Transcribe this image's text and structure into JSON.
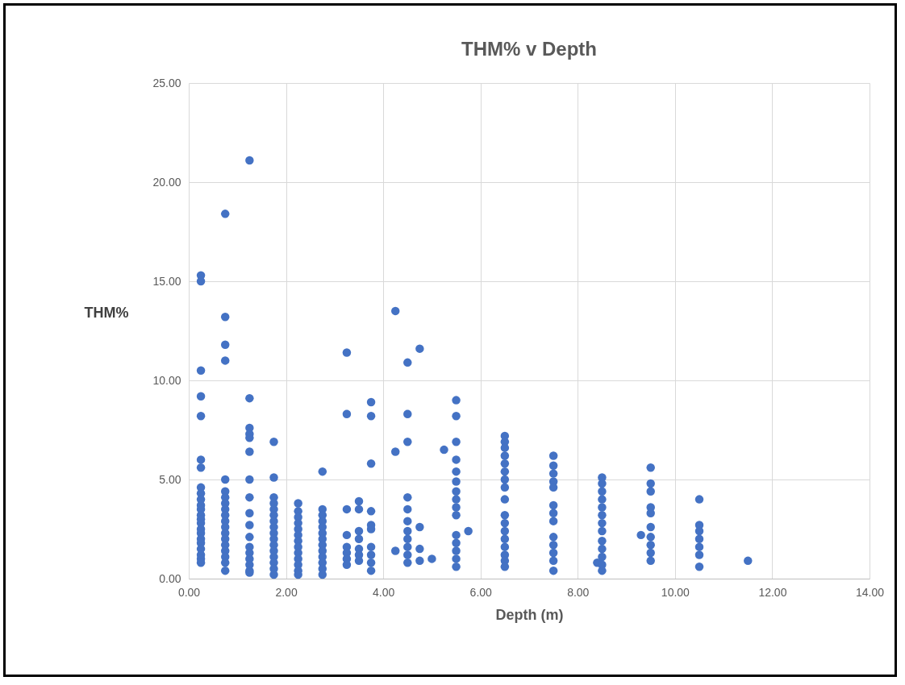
{
  "chart_data": {
    "type": "scatter",
    "title": "THM% v Depth",
    "xlabel": "Depth (m)",
    "ylabel": "THM%",
    "x": [
      0.25,
      0.25,
      0.25,
      0.25,
      0.25,
      0.25,
      0.25,
      0.25,
      0.25,
      0.25,
      0.25,
      0.25,
      0.25,
      0.25,
      0.25,
      0.25,
      0.25,
      0.25,
      0.25,
      0.25,
      0.25,
      0.25,
      0.25,
      0.75,
      0.75,
      0.75,
      0.75,
      0.75,
      0.75,
      0.75,
      0.75,
      0.75,
      0.75,
      0.75,
      0.75,
      0.75,
      0.75,
      0.75,
      0.75,
      0.75,
      0.75,
      0.75,
      1.25,
      1.25,
      1.25,
      1.25,
      1.25,
      1.25,
      1.25,
      1.25,
      1.25,
      1.25,
      1.25,
      1.25,
      1.25,
      1.25,
      1.25,
      1.25,
      1.25,
      1.75,
      1.75,
      1.75,
      1.75,
      1.75,
      1.75,
      1.75,
      1.75,
      1.75,
      1.75,
      1.75,
      1.75,
      1.75,
      1.75,
      1.75,
      1.75,
      2.25,
      2.25,
      2.25,
      2.25,
      2.25,
      2.25,
      2.25,
      2.25,
      2.25,
      2.25,
      2.25,
      2.25,
      2.25,
      2.75,
      2.75,
      2.75,
      2.75,
      2.75,
      2.75,
      2.75,
      2.75,
      2.75,
      2.75,
      2.75,
      2.75,
      2.75,
      3.25,
      3.25,
      3.25,
      3.25,
      3.25,
      3.25,
      3.25,
      3.25,
      3.5,
      3.5,
      3.5,
      3.5,
      3.5,
      3.5,
      3.5,
      3.75,
      3.75,
      3.75,
      3.75,
      3.75,
      3.75,
      3.75,
      3.75,
      3.75,
      3.75,
      4.25,
      4.25,
      4.25,
      4.5,
      4.5,
      4.5,
      4.5,
      4.5,
      4.5,
      4.5,
      4.5,
      4.5,
      4.5,
      4.5,
      4.75,
      4.75,
      4.75,
      4.75,
      5.0,
      5.25,
      5.5,
      5.5,
      5.5,
      5.5,
      5.5,
      5.5,
      5.5,
      5.5,
      5.5,
      5.5,
      5.5,
      5.5,
      5.5,
      5.5,
      5.5,
      5.75,
      6.5,
      6.5,
      6.5,
      6.5,
      6.5,
      6.5,
      6.5,
      6.5,
      6.5,
      6.5,
      6.5,
      6.5,
      6.5,
      6.5,
      6.5,
      6.5,
      6.5,
      7.5,
      7.5,
      7.5,
      7.5,
      7.5,
      7.5,
      7.5,
      7.5,
      7.5,
      7.5,
      7.5,
      7.5,
      7.5,
      8.4,
      8.5,
      8.5,
      8.5,
      8.5,
      8.5,
      8.5,
      8.5,
      8.5,
      8.5,
      8.5,
      8.5,
      8.5,
      8.5,
      9.3,
      9.5,
      9.5,
      9.5,
      9.5,
      9.5,
      9.5,
      9.5,
      9.5,
      9.5,
      9.5,
      10.5,
      10.5,
      10.5,
      10.5,
      10.5,
      10.5,
      10.5,
      11.5
    ],
    "series": [
      {
        "color": "#4472c4",
        "values": [
          15.3,
          15.0,
          10.5,
          9.2,
          8.2,
          6.0,
          5.6,
          4.6,
          4.3,
          4.0,
          3.7,
          3.5,
          3.2,
          3.0,
          2.8,
          2.5,
          2.3,
          2.0,
          1.8,
          1.5,
          1.2,
          1.0,
          0.8,
          18.4,
          13.2,
          11.8,
          11.0,
          5.0,
          4.4,
          4.1,
          3.8,
          3.5,
          3.2,
          2.9,
          2.6,
          2.3,
          2.0,
          1.7,
          1.4,
          1.1,
          0.8,
          0.4,
          21.1,
          9.1,
          7.6,
          7.3,
          7.1,
          6.4,
          5.0,
          4.1,
          3.3,
          2.7,
          2.1,
          1.6,
          1.3,
          1.0,
          0.7,
          0.4,
          0.3,
          6.9,
          5.1,
          4.1,
          3.8,
          3.5,
          3.2,
          2.9,
          2.6,
          2.3,
          2.0,
          1.7,
          1.4,
          1.1,
          0.8,
          0.5,
          0.2,
          3.8,
          3.4,
          3.1,
          2.8,
          2.5,
          2.2,
          1.9,
          1.6,
          1.3,
          1.0,
          0.7,
          0.4,
          0.2,
          5.4,
          3.5,
          3.2,
          2.9,
          2.6,
          2.3,
          2.0,
          1.7,
          1.4,
          1.1,
          0.8,
          0.5,
          0.2,
          11.4,
          8.3,
          3.5,
          2.2,
          1.6,
          1.3,
          1.0,
          0.7,
          3.9,
          3.5,
          2.4,
          2.0,
          1.5,
          1.2,
          0.9,
          8.9,
          8.2,
          5.8,
          3.4,
          2.7,
          2.5,
          1.6,
          1.2,
          0.8,
          0.4,
          13.5,
          6.4,
          1.4,
          10.9,
          8.3,
          6.9,
          4.1,
          3.5,
          2.9,
          2.4,
          2.0,
          1.6,
          1.2,
          0.8,
          11.6,
          2.6,
          1.5,
          0.9,
          1.0,
          6.5,
          9.0,
          8.2,
          6.9,
          6.0,
          5.4,
          4.9,
          4.4,
          4.0,
          3.6,
          3.2,
          2.2,
          1.8,
          1.4,
          1.0,
          0.6,
          2.4,
          7.2,
          6.9,
          6.6,
          6.2,
          5.8,
          5.4,
          5.0,
          4.6,
          4.0,
          3.2,
          2.8,
          2.4,
          2.0,
          1.6,
          1.2,
          0.9,
          0.6,
          6.2,
          5.7,
          5.3,
          4.9,
          4.6,
          3.7,
          3.3,
          2.9,
          2.1,
          1.7,
          1.3,
          0.9,
          0.4,
          0.8,
          5.1,
          4.8,
          4.4,
          4.0,
          3.6,
          3.2,
          2.8,
          2.4,
          1.9,
          1.5,
          1.1,
          0.7,
          0.4,
          2.2,
          5.6,
          4.8,
          4.4,
          3.6,
          3.3,
          2.6,
          2.1,
          1.7,
          1.3,
          0.9,
          4.0,
          2.7,
          2.4,
          2.0,
          1.6,
          1.2,
          0.6,
          0.9
        ]
      }
    ],
    "xlim": [
      0,
      14
    ],
    "xticks": [
      {
        "value": 0,
        "label": "0.00"
      },
      {
        "value": 2,
        "label": "2.00"
      },
      {
        "value": 4,
        "label": "4.00"
      },
      {
        "value": 6,
        "label": "6.00"
      },
      {
        "value": 8,
        "label": "8.00"
      },
      {
        "value": 10,
        "label": "10.00"
      },
      {
        "value": 12,
        "label": "12.00"
      },
      {
        "value": 14,
        "label": "14.00"
      }
    ],
    "ylim": [
      0,
      25
    ],
    "yticks": [
      {
        "value": 0,
        "label": "0.00"
      },
      {
        "value": 5,
        "label": "5.00"
      },
      {
        "value": 10,
        "label": "10.00"
      },
      {
        "value": 15,
        "label": "15.00"
      },
      {
        "value": 20,
        "label": "20.00"
      },
      {
        "value": 25,
        "label": "25.00"
      }
    ],
    "grid": true,
    "marker": "circle"
  }
}
